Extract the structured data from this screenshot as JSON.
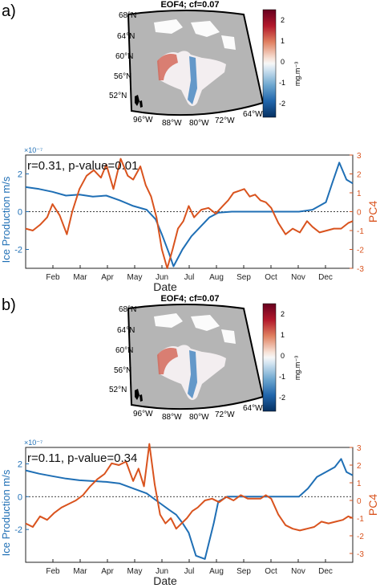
{
  "figure": {
    "panels": [
      {
        "panel_label": "a)",
        "map": {
          "title": "EOF4; cf=0.07",
          "lat_labels": [
            "68°N",
            "64°N",
            "60°N",
            "56°N",
            "52°N"
          ],
          "lon_labels": [
            "96°W",
            "88°W",
            "80°W",
            "72°W",
            "64°W"
          ],
          "colorbar": {
            "ticks": [
              "2",
              "1",
              "0",
              "-1",
              "-2"
            ],
            "label": "mg.m⁻³",
            "range": [
              -2.5,
              2.5
            ]
          }
        }
      },
      {
        "panel_label": "b)",
        "map": {
          "title": "EOF4; cf=0.07",
          "lat_labels": [
            "68°N",
            "64°N",
            "60°N",
            "56°N",
            "52°N"
          ],
          "lon_labels": [
            "96°W",
            "88°W",
            "80°W",
            "72°W",
            "64°W"
          ],
          "colorbar": {
            "ticks": [
              "2",
              "1",
              "0",
              "-1",
              "-2"
            ],
            "label": "mg.m⁻³",
            "range": [
              -2.5,
              2.5
            ]
          }
        }
      }
    ],
    "colors": {
      "ice": "#1f6fb5",
      "pc": "#d9531e",
      "land": "#b5b5b5",
      "axis": "#222222"
    }
  },
  "chart_data": [
    {
      "type": "line",
      "panel": "a)",
      "annotation": "r=0.31, p-value=0.01",
      "xlabel": "Date",
      "x_ticks": [
        "Feb",
        "Mar",
        "Apr",
        "May",
        "Jun",
        "Jul",
        "Aug",
        "Sep",
        "Oct",
        "Nov",
        "Dec"
      ],
      "xlim": [
        0,
        365
      ],
      "y_left": {
        "label": "Ice Production m/s",
        "exponent": "×10⁻⁷",
        "ticks": [
          "2",
          "0",
          "-2"
        ],
        "ylim": [
          -3,
          3
        ]
      },
      "y_right": {
        "label": "PC4",
        "ticks": [
          "3",
          "2",
          "1",
          "0",
          "-1",
          "-2",
          "-3"
        ],
        "ylim": [
          -3,
          3
        ]
      },
      "series": [
        {
          "name": "Ice Production",
          "axis": "left",
          "x": [
            0,
            15,
            30,
            45,
            60,
            75,
            90,
            105,
            120,
            135,
            145,
            152,
            160,
            165,
            175,
            185,
            195,
            205,
            215,
            230,
            260,
            290,
            305,
            320,
            335,
            342,
            350,
            358,
            365
          ],
          "y": [
            1.3,
            1.2,
            1.05,
            0.85,
            0.9,
            0.8,
            0.85,
            0.6,
            0.3,
            0.1,
            -0.4,
            -1.2,
            -2.2,
            -2.9,
            -2.0,
            -1.3,
            -0.8,
            -0.3,
            -0.05,
            0.0,
            0.0,
            0.0,
            0.0,
            0.1,
            0.5,
            1.5,
            2.6,
            1.7,
            1.5
          ]
        },
        {
          "name": "PC4",
          "axis": "right",
          "x": [
            0,
            8,
            16,
            24,
            30,
            38,
            46,
            52,
            60,
            68,
            76,
            84,
            90,
            98,
            106,
            114,
            120,
            128,
            134,
            140,
            146,
            152,
            158,
            164,
            170,
            176,
            182,
            188,
            196,
            204,
            212,
            220,
            226,
            232,
            238,
            244,
            250,
            256,
            262,
            268,
            274,
            282,
            290,
            298,
            306,
            314,
            320,
            328,
            336,
            344,
            352,
            360,
            365
          ],
          "y": [
            -0.9,
            -1.0,
            -0.7,
            -0.3,
            0.4,
            -0.2,
            -1.2,
            0.0,
            1.2,
            1.9,
            2.2,
            1.8,
            2.5,
            1.2,
            2.8,
            1.9,
            1.7,
            2.4,
            1.4,
            0.8,
            -0.3,
            -2.0,
            -3.0,
            -2.0,
            -0.9,
            -0.5,
            0.3,
            -0.3,
            0.1,
            0.2,
            -0.1,
            0.3,
            0.6,
            1.0,
            1.1,
            1.2,
            0.8,
            0.9,
            0.6,
            0.5,
            0.2,
            -0.6,
            -1.2,
            -0.9,
            -1.1,
            -0.5,
            -0.8,
            -1.1,
            -1.0,
            -0.9,
            -0.9,
            -0.6,
            -0.5
          ]
        }
      ]
    },
    {
      "type": "line",
      "panel": "b)",
      "annotation": "r=0.11, p-value=0.34",
      "xlabel": "Date",
      "x_ticks": [
        "Feb",
        "Mar",
        "Apr",
        "May",
        "Jun",
        "Jul",
        "Aug",
        "Sep",
        "Oct",
        "Nov",
        "Dec"
      ],
      "xlim": [
        0,
        365
      ],
      "y_left": {
        "label": "Ice Production m/s",
        "exponent": "×10⁻⁷",
        "ticks": [
          "2",
          "0",
          "-2"
        ],
        "ylim": [
          -4,
          3
        ]
      },
      "y_right": {
        "label": "PC4",
        "ticks": [
          "3",
          "2",
          "1",
          "0",
          "-1",
          "-2",
          "-3"
        ],
        "ylim": [
          -3.5,
          3
        ]
      },
      "series": [
        {
          "name": "Ice Production",
          "axis": "left",
          "x": [
            0,
            15,
            30,
            45,
            60,
            75,
            90,
            105,
            120,
            135,
            150,
            160,
            168,
            175,
            182,
            190,
            200,
            210,
            215,
            225,
            260,
            290,
            305,
            315,
            325,
            335,
            345,
            352,
            358,
            365
          ],
          "y": [
            1.6,
            1.4,
            1.25,
            1.1,
            1.0,
            0.95,
            0.9,
            0.8,
            0.5,
            0.2,
            -0.4,
            -0.8,
            -1.1,
            -1.6,
            -2.2,
            -3.6,
            -3.8,
            -1.6,
            -0.3,
            0.0,
            0.0,
            0.0,
            0.0,
            0.5,
            1.2,
            1.5,
            1.8,
            2.3,
            1.5,
            1.3
          ]
        },
        {
          "name": "PC4",
          "axis": "right",
          "x": [
            0,
            8,
            16,
            24,
            32,
            40,
            48,
            56,
            64,
            72,
            80,
            88,
            96,
            104,
            112,
            120,
            126,
            132,
            138,
            144,
            150,
            156,
            162,
            168,
            174,
            180,
            186,
            192,
            200,
            208,
            216,
            224,
            232,
            240,
            248,
            256,
            262,
            268,
            274,
            282,
            290,
            298,
            306,
            314,
            322,
            330,
            338,
            346,
            354,
            360,
            365
          ],
          "y": [
            -1.3,
            -1.5,
            -0.9,
            -1.1,
            -0.7,
            -0.4,
            -0.2,
            0.0,
            0.3,
            0.8,
            1.2,
            1.5,
            2.1,
            2.0,
            2.2,
            1.1,
            1.8,
            0.8,
            3.2,
            0.9,
            -0.8,
            -1.3,
            -1.0,
            -1.6,
            -1.3,
            -1.0,
            -0.6,
            -0.4,
            0.0,
            0.1,
            -0.1,
            0.2,
            0.0,
            0.3,
            0.1,
            0.1,
            0.1,
            0.3,
            0.1,
            -0.8,
            -1.4,
            -1.6,
            -1.7,
            -1.6,
            -1.5,
            -1.2,
            -1.3,
            -1.2,
            -1.1,
            -0.9,
            -1.0
          ]
        }
      ]
    }
  ]
}
